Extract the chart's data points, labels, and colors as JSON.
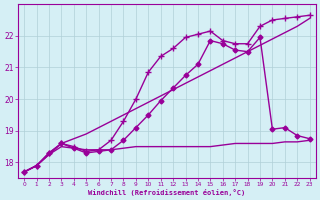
{
  "xlabel": "Windchill (Refroidissement éolien,°C)",
  "background_color": "#d5eff5",
  "grid_color": "#b0d0d8",
  "line_color": "#990099",
  "xlim": [
    -0.5,
    23.5
  ],
  "ylim": [
    17.5,
    23.0
  ],
  "xticks": [
    0,
    1,
    2,
    3,
    4,
    5,
    6,
    7,
    8,
    9,
    10,
    11,
    12,
    13,
    14,
    15,
    16,
    17,
    18,
    19,
    20,
    21,
    22,
    23
  ],
  "yticks": [
    18,
    19,
    20,
    21,
    22
  ],
  "lines": [
    {
      "x": [
        0,
        1,
        2,
        3,
        4,
        5,
        6,
        7,
        8,
        9,
        10,
        11,
        12,
        13,
        14,
        15,
        16,
        17,
        18,
        19,
        20,
        21,
        22,
        23
      ],
      "y": [
        17.7,
        17.9,
        18.25,
        18.5,
        18.45,
        18.4,
        18.4,
        18.4,
        18.45,
        18.5,
        18.5,
        18.5,
        18.5,
        18.5,
        18.5,
        18.5,
        18.55,
        18.6,
        18.6,
        18.6,
        18.6,
        18.65,
        18.65,
        18.7
      ],
      "marker": null,
      "linewidth": 1.0,
      "linestyle": "-"
    },
    {
      "x": [
        0,
        1,
        2,
        3,
        4,
        5,
        6,
        7,
        8,
        9,
        10,
        11,
        12,
        13,
        14,
        15,
        16,
        17,
        18,
        19,
        20,
        21,
        22,
        23
      ],
      "y": [
        17.7,
        17.9,
        18.25,
        18.6,
        18.75,
        18.9,
        19.1,
        19.3,
        19.5,
        19.7,
        19.9,
        20.1,
        20.3,
        20.5,
        20.7,
        20.9,
        21.1,
        21.3,
        21.5,
        21.7,
        21.9,
        22.1,
        22.3,
        22.55
      ],
      "marker": null,
      "linewidth": 1.0,
      "linestyle": "-"
    },
    {
      "x": [
        0,
        1,
        2,
        3,
        4,
        5,
        6,
        7,
        8,
        9,
        10,
        11,
        12,
        13,
        14,
        15,
        16,
        17,
        18,
        19,
        20,
        21,
        22,
        23
      ],
      "y": [
        17.7,
        17.9,
        18.3,
        18.6,
        18.45,
        18.3,
        18.35,
        18.4,
        18.7,
        19.1,
        19.5,
        19.95,
        20.35,
        20.75,
        21.1,
        21.85,
        21.75,
        21.55,
        21.5,
        21.95,
        19.05,
        19.1,
        18.85,
        18.75
      ],
      "marker": "D",
      "markersize": 2.5,
      "linewidth": 1.0,
      "linestyle": "-"
    },
    {
      "x": [
        0,
        1,
        2,
        3,
        4,
        5,
        6,
        7,
        8,
        9,
        10,
        11,
        12,
        13,
        14,
        15,
        16,
        17,
        18,
        19,
        20,
        21,
        22,
        23
      ],
      "y": [
        17.7,
        17.9,
        18.3,
        18.6,
        18.5,
        18.35,
        18.4,
        18.7,
        19.3,
        20.0,
        20.85,
        21.35,
        21.6,
        21.95,
        22.05,
        22.15,
        21.85,
        21.75,
        21.75,
        22.3,
        22.5,
        22.55,
        22.6,
        22.65
      ],
      "marker": "+",
      "markersize": 4,
      "linewidth": 1.0,
      "linestyle": "-"
    }
  ]
}
